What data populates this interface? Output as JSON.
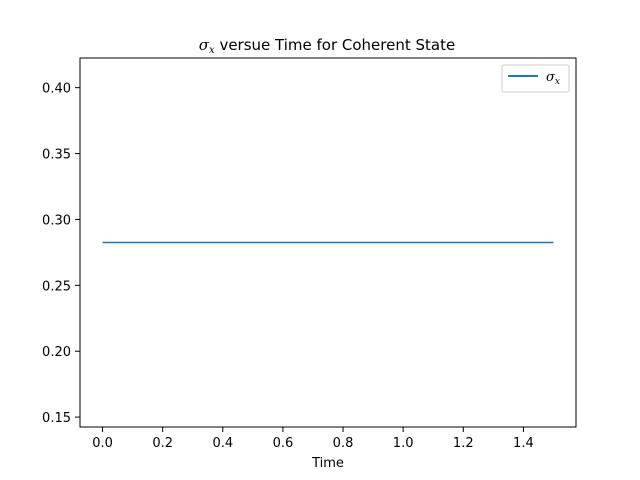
{
  "chart_data": {
    "type": "line",
    "title": "σx versue Time for Coherent State",
    "title_symbol": "σ",
    "title_subscript": "x",
    "title_rest": " versue Time for Coherent State",
    "xlabel": "Time",
    "ylabel": "",
    "xlim": [
      -0.075,
      1.575
    ],
    "ylim": [
      0.1425,
      0.4225
    ],
    "xticks": [
      0.0,
      0.2,
      0.4,
      0.6,
      0.8,
      1.0,
      1.2,
      1.4
    ],
    "xtick_labels": [
      "0.0",
      "0.2",
      "0.4",
      "0.6",
      "0.8",
      "1.0",
      "1.2",
      "1.4"
    ],
    "yticks": [
      0.15,
      0.2,
      0.25,
      0.3,
      0.35,
      0.4
    ],
    "ytick_labels": [
      "0.15",
      "0.20",
      "0.25",
      "0.30",
      "0.35",
      "0.40"
    ],
    "grid": false,
    "legend_position": "top-right",
    "series": [
      {
        "name": "σx",
        "legend_symbol": "σ",
        "legend_subscript": "x",
        "color": "#1f77b4",
        "x": [
          0.0,
          1.5
        ],
        "y": [
          0.2825,
          0.2825
        ]
      }
    ]
  }
}
